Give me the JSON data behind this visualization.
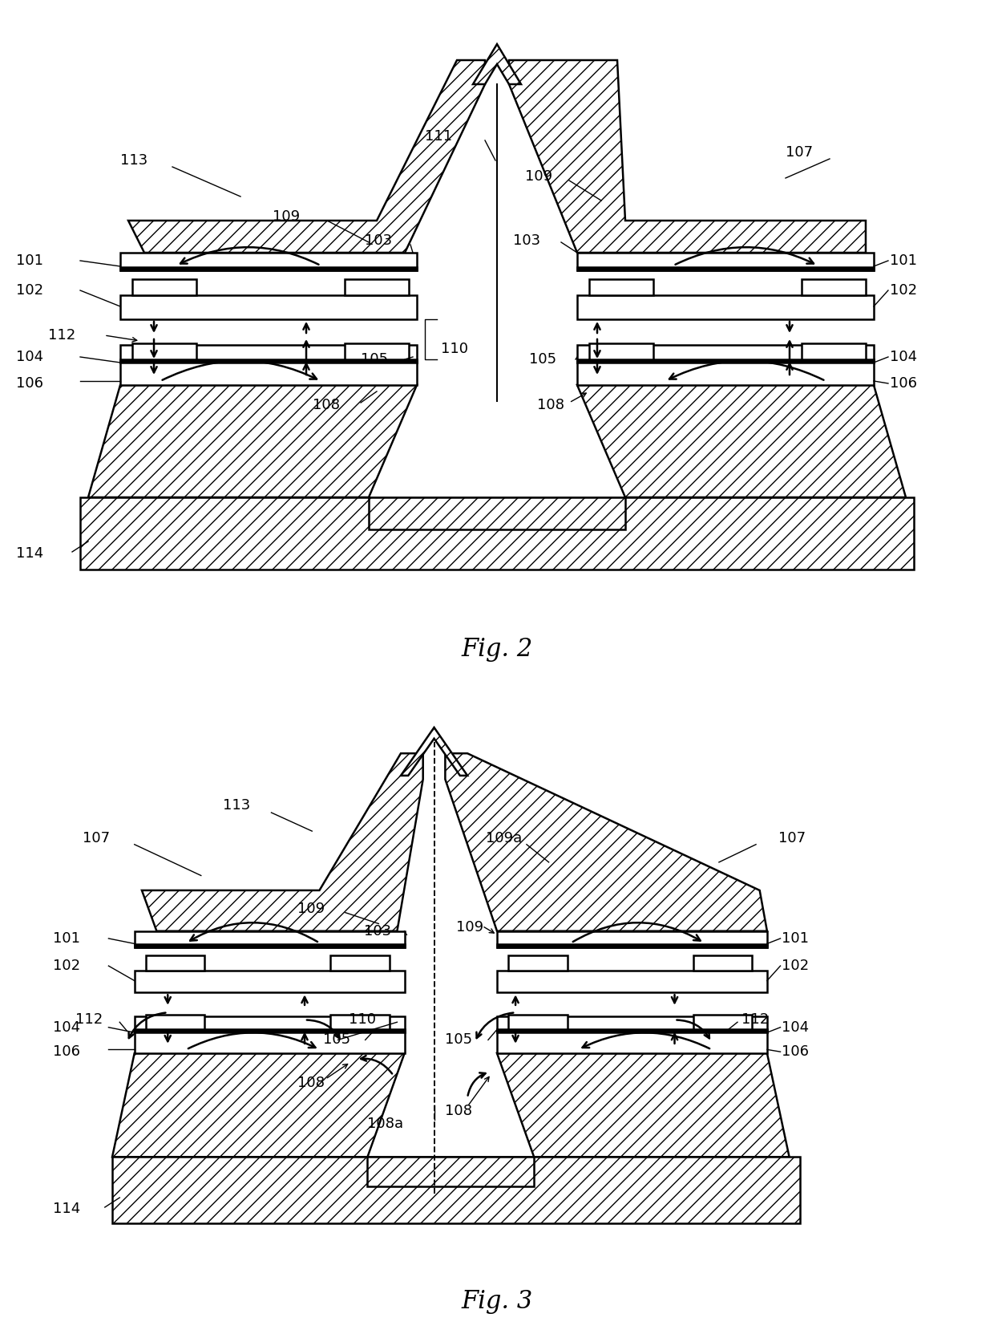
{
  "fig2_title": "Fig. 2",
  "fig3_title": "Fig. 3",
  "line_color": "#000000",
  "background": "#ffffff",
  "lw": 1.8,
  "lw_thin": 1.0,
  "font_size_label": 13,
  "font_size_fig": 22
}
